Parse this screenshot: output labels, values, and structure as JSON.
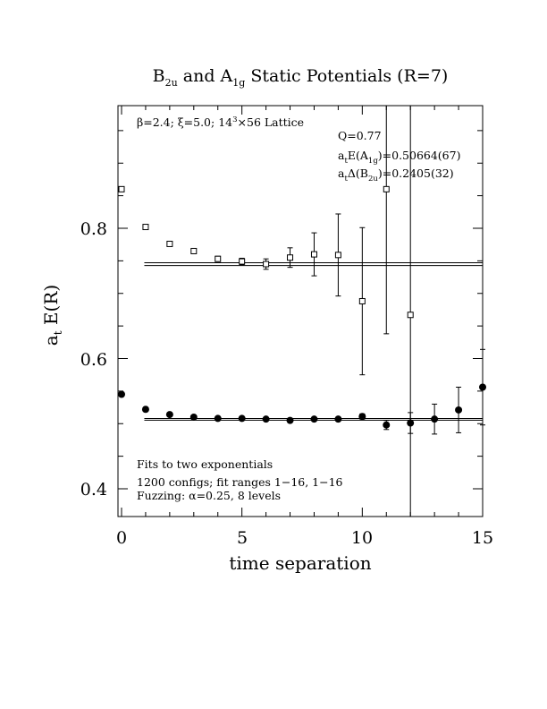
{
  "chart_data": {
    "type": "scatter",
    "title": {
      "p1": "B",
      "s1": "2u",
      "p2": " and A",
      "s2": "1g",
      "p3": " Static Potentials (R=7)"
    },
    "xlabel": "time separation",
    "ylabel": {
      "main": "a",
      "sub": "t",
      "rest": " E(R)"
    },
    "xlim": [
      0,
      15
    ],
    "ylim": [
      0.36,
      0.99
    ],
    "xticks": [
      "0",
      "5",
      "10",
      "15"
    ],
    "yticks": [
      "0.4",
      "0.6",
      "0.8"
    ],
    "grid": false,
    "annotations": {
      "lattice": {
        "beta": "β=2.4; ",
        "xi": "ξ=5.0; 14",
        "exp": "3",
        "rest": "×56 Lattice"
      },
      "q": "Q=0.77",
      "a1g_energy": {
        "p1": "a",
        "s1": "t",
        "p2": "E(A",
        "s2": "1g",
        "p3": ")=0.50664(67)"
      },
      "b2u_gap": {
        "p1": "a",
        "s1": "t",
        "p2": "Δ(B",
        "s2": "2u",
        "p3": ")=0.2405(32)"
      },
      "fit_line1": "Fits to two exponentials",
      "fit_line2": "1200 configs; fit ranges 1−16, 1−16",
      "fit_line3": "Fuzzing: α=0.25, 8 levels"
    },
    "series": [
      {
        "marker": "open-square",
        "x": [
          0,
          1,
          2,
          3,
          4,
          5,
          6,
          7,
          8,
          9,
          10,
          11,
          12
        ],
        "y": [
          0.86,
          0.802,
          0.776,
          0.765,
          0.753,
          0.749,
          0.745,
          0.755,
          0.76,
          0.759,
          0.688,
          0.86,
          0.667
        ],
        "err": [
          0.002,
          0.003,
          0.003,
          0.004,
          0.004,
          0.005,
          0.008,
          0.015,
          0.033,
          0.063,
          0.113,
          0.222,
          0.5
        ]
      },
      {
        "marker": "filled-circle",
        "x": [
          0,
          1,
          2,
          3,
          4,
          5,
          6,
          7,
          8,
          9,
          10,
          11,
          12,
          13,
          14,
          15
        ],
        "y": [
          0.545,
          0.522,
          0.514,
          0.51,
          0.508,
          0.508,
          0.507,
          0.505,
          0.507,
          0.507,
          0.511,
          0.498,
          0.501,
          0.507,
          0.521,
          0.556
        ],
        "err": [
          0.001,
          0.001,
          0.001,
          0.001,
          0.001,
          0.001,
          0.002,
          0.002,
          0.002,
          0.003,
          0.004,
          0.007,
          0.016,
          0.023,
          0.035,
          0.058
        ]
      }
    ],
    "fit_bands": [
      {
        "x_range": [
          0.5,
          15
        ],
        "y": [
          0.7428,
          0.7471
        ]
      },
      {
        "x_range": [
          0.5,
          15
        ],
        "y": [
          0.5054,
          0.5079
        ]
      }
    ]
  }
}
